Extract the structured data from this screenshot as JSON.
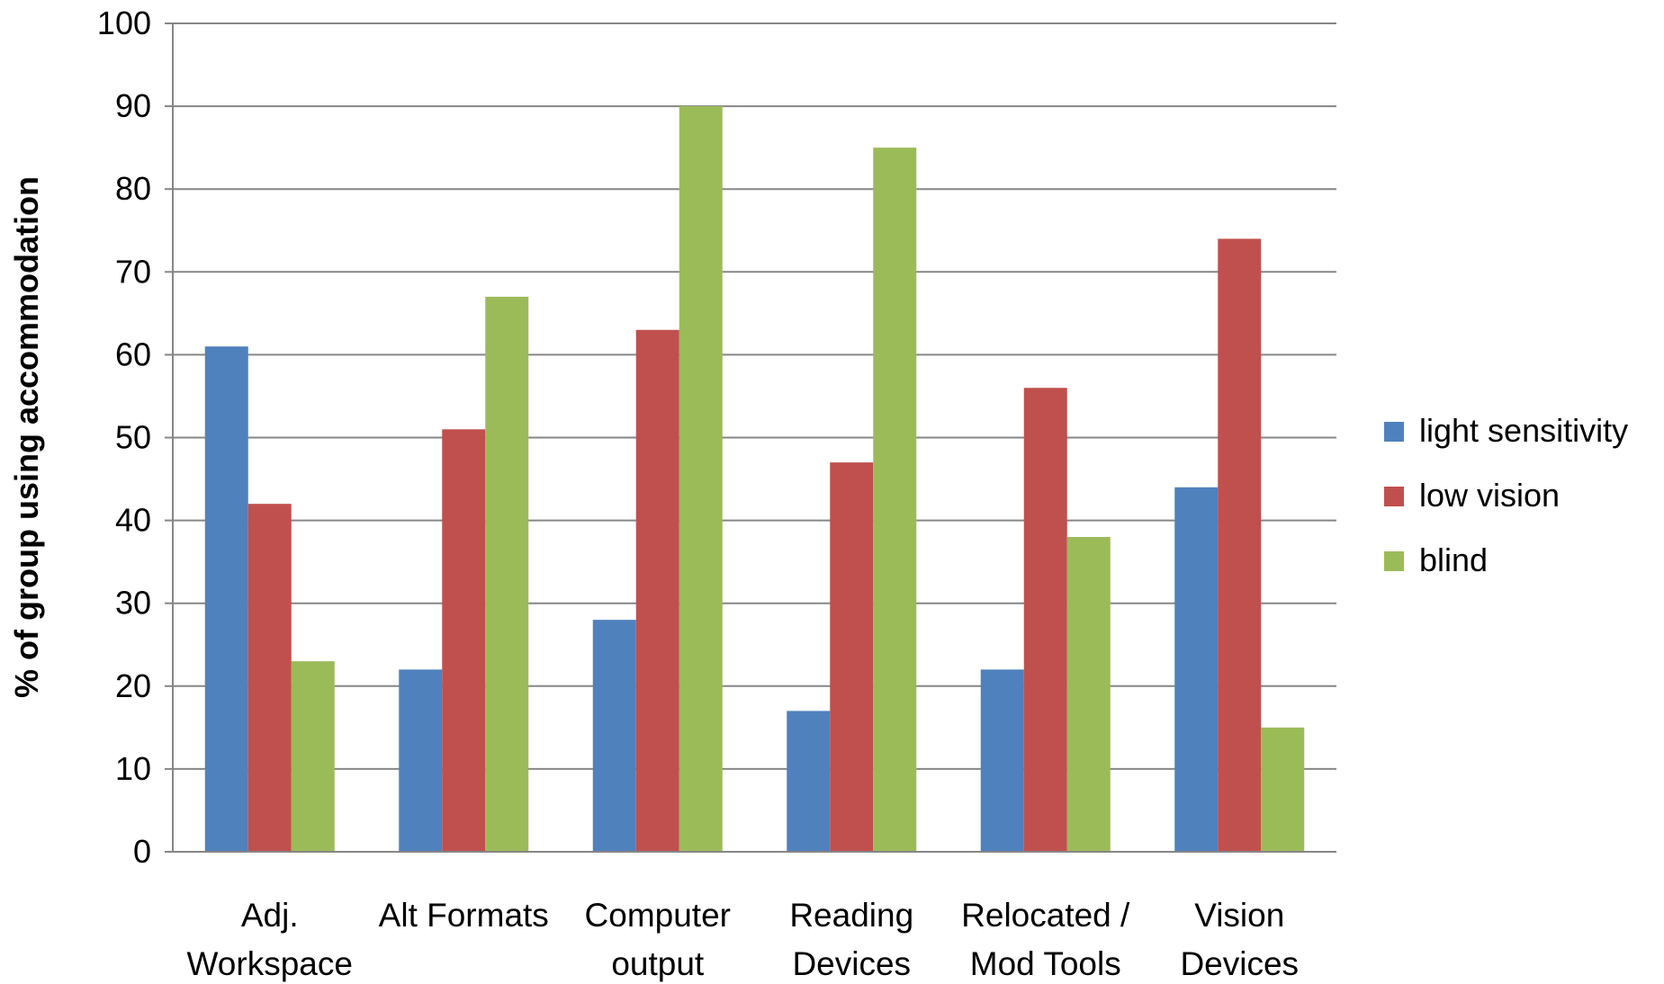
{
  "chart_data": {
    "type": "bar",
    "title": "",
    "xlabel": "",
    "ylabel": "% of group using accommodation",
    "ylim": [
      0,
      100
    ],
    "yticks": [
      0,
      10,
      20,
      30,
      40,
      50,
      60,
      70,
      80,
      90,
      100
    ],
    "grid": true,
    "legend_position": "right",
    "categories": [
      [
        "Adj.",
        "Workspace"
      ],
      [
        "Alt Formats"
      ],
      [
        "Computer",
        "output"
      ],
      [
        "Reading",
        "Devices"
      ],
      [
        "Relocated /",
        "Mod Tools"
      ],
      [
        "Vision",
        "Devices"
      ]
    ],
    "series": [
      {
        "name": "light sensitivity",
        "color": "#4f81bd",
        "values": [
          61,
          22,
          28,
          17,
          22,
          44
        ]
      },
      {
        "name": "low vision",
        "color": "#c0504d",
        "values": [
          42,
          51,
          63,
          47,
          56,
          74
        ]
      },
      {
        "name": "blind",
        "color": "#9bbb59",
        "values": [
          23,
          67,
          90,
          85,
          38,
          15
        ]
      }
    ]
  }
}
